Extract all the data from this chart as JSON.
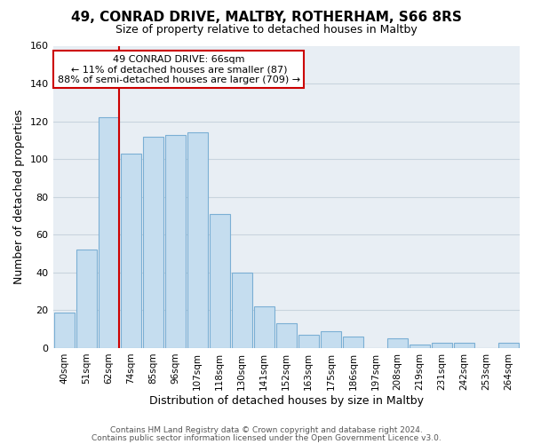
{
  "title": "49, CONRAD DRIVE, MALTBY, ROTHERHAM, S66 8RS",
  "subtitle": "Size of property relative to detached houses in Maltby",
  "xlabel": "Distribution of detached houses by size in Maltby",
  "ylabel": "Number of detached properties",
  "bar_labels": [
    "40sqm",
    "51sqm",
    "62sqm",
    "74sqm",
    "85sqm",
    "96sqm",
    "107sqm",
    "118sqm",
    "130sqm",
    "141sqm",
    "152sqm",
    "163sqm",
    "175sqm",
    "186sqm",
    "197sqm",
    "208sqm",
    "219sqm",
    "231sqm",
    "242sqm",
    "253sqm",
    "264sqm"
  ],
  "bar_values": [
    19,
    52,
    122,
    103,
    112,
    113,
    114,
    71,
    40,
    22,
    13,
    7,
    9,
    6,
    0,
    5,
    2,
    3,
    3,
    0,
    3
  ],
  "bar_color": "#c5ddef",
  "bar_edge_color": "#7bafd4",
  "marker_line_index": 2,
  "marker_line_color": "#cc0000",
  "ylim": [
    0,
    160
  ],
  "yticks": [
    0,
    20,
    40,
    60,
    80,
    100,
    120,
    140,
    160
  ],
  "annotation_title": "49 CONRAD DRIVE: 66sqm",
  "annotation_line1": "← 11% of detached houses are smaller (87)",
  "annotation_line2": "88% of semi-detached houses are larger (709) →",
  "annotation_box_color": "#ffffff",
  "annotation_box_edge": "#cc0000",
  "footer_line1": "Contains HM Land Registry data © Crown copyright and database right 2024.",
  "footer_line2": "Contains public sector information licensed under the Open Government Licence v3.0.",
  "background_color": "#ffffff",
  "axes_bg_color": "#e8eef4",
  "grid_color": "#c8d4de",
  "title_fontsize": 11,
  "subtitle_fontsize": 9,
  "ylabel_fontsize": 9,
  "xlabel_fontsize": 9,
  "tick_fontsize": 7.5,
  "footer_fontsize": 6.5,
  "annotation_fontsize": 8
}
